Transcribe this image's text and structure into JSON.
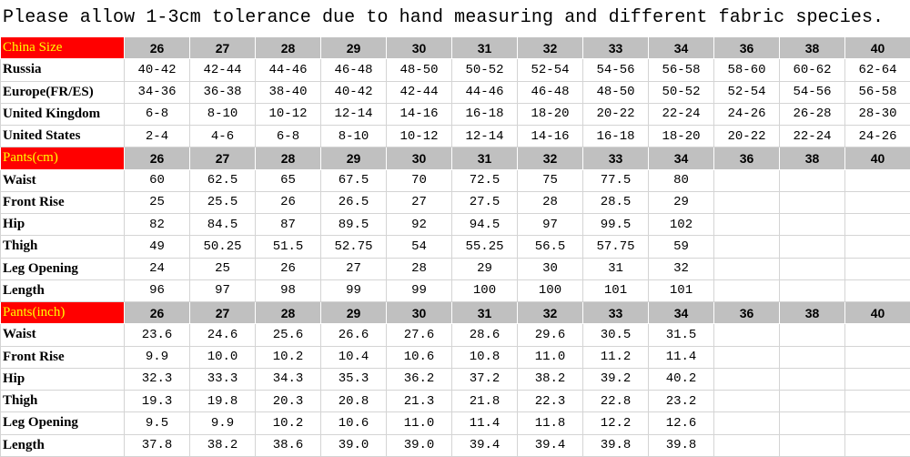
{
  "title": "Please allow 1-3cm tolerance due to hand measuring and different fabric species.",
  "sections": [
    {
      "header": [
        "China Size",
        "26",
        "27",
        "28",
        "29",
        "30",
        "31",
        "32",
        "33",
        "34",
        "36",
        "38",
        "40"
      ],
      "rows": [
        [
          "Russia",
          "40-42",
          "42-44",
          "44-46",
          "46-48",
          "48-50",
          "50-52",
          "52-54",
          "54-56",
          "56-58",
          "58-60",
          "60-62",
          "62-64"
        ],
        [
          "Europe(FR/ES)",
          "34-36",
          "36-38",
          "38-40",
          "40-42",
          "42-44",
          "44-46",
          "46-48",
          "48-50",
          "50-52",
          "52-54",
          "54-56",
          "56-58"
        ],
        [
          "United Kingdom",
          "6-8",
          "8-10",
          "10-12",
          "12-14",
          "14-16",
          "16-18",
          "18-20",
          "20-22",
          "22-24",
          "24-26",
          "26-28",
          "28-30"
        ],
        [
          "United States",
          "2-4",
          "4-6",
          "6-8",
          "8-10",
          "10-12",
          "12-14",
          "14-16",
          "16-18",
          "18-20",
          "20-22",
          "22-24",
          "24-26"
        ]
      ]
    },
    {
      "header": [
        "Pants(cm)",
        "26",
        "27",
        "28",
        "29",
        "30",
        "31",
        "32",
        "33",
        "34",
        "36",
        "38",
        "40"
      ],
      "rows": [
        [
          "Waist",
          "60",
          "62.5",
          "65",
          "67.5",
          "70",
          "72.5",
          "75",
          "77.5",
          "80"
        ],
        [
          "Front Rise",
          "25",
          "25.5",
          "26",
          "26.5",
          "27",
          "27.5",
          "28",
          "28.5",
          "29"
        ],
        [
          "Hip",
          "82",
          "84.5",
          "87",
          "89.5",
          "92",
          "94.5",
          "97",
          "99.5",
          "102"
        ],
        [
          "Thigh",
          "49",
          "50.25",
          "51.5",
          "52.75",
          "54",
          "55.25",
          "56.5",
          "57.75",
          "59"
        ],
        [
          "Leg Opening",
          "24",
          "25",
          "26",
          "27",
          "28",
          "29",
          "30",
          "31",
          "32"
        ],
        [
          "Length",
          "96",
          "97",
          "98",
          "99",
          "99",
          "100",
          "100",
          "101",
          "101"
        ]
      ]
    },
    {
      "header": [
        "Pants(inch)",
        "26",
        "27",
        "28",
        "29",
        "30",
        "31",
        "32",
        "33",
        "34",
        "36",
        "38",
        "40"
      ],
      "rows": [
        [
          "Waist",
          "23.6",
          "24.6",
          "25.6",
          "26.6",
          "27.6",
          "28.6",
          "29.6",
          "30.5",
          "31.5"
        ],
        [
          "Front Rise",
          "9.9",
          "10.0",
          "10.2",
          "10.4",
          "10.6",
          "10.8",
          "11.0",
          "11.2",
          "11.4"
        ],
        [
          "Hip",
          "32.3",
          "33.3",
          "34.3",
          "35.3",
          "36.2",
          "37.2",
          "38.2",
          "39.2",
          "40.2"
        ],
        [
          "Thigh",
          "19.3",
          "19.8",
          "20.3",
          "20.8",
          "21.3",
          "21.8",
          "22.3",
          "22.8",
          "23.2"
        ],
        [
          "Leg Opening",
          "9.5",
          "9.9",
          "10.2",
          "10.6",
          "11.0",
          "11.4",
          "11.8",
          "12.2",
          "12.6"
        ],
        [
          "Length",
          "37.8",
          "38.2",
          "38.6",
          "39.0",
          "39.0",
          "39.4",
          "39.4",
          "39.8",
          "39.8"
        ]
      ]
    }
  ]
}
